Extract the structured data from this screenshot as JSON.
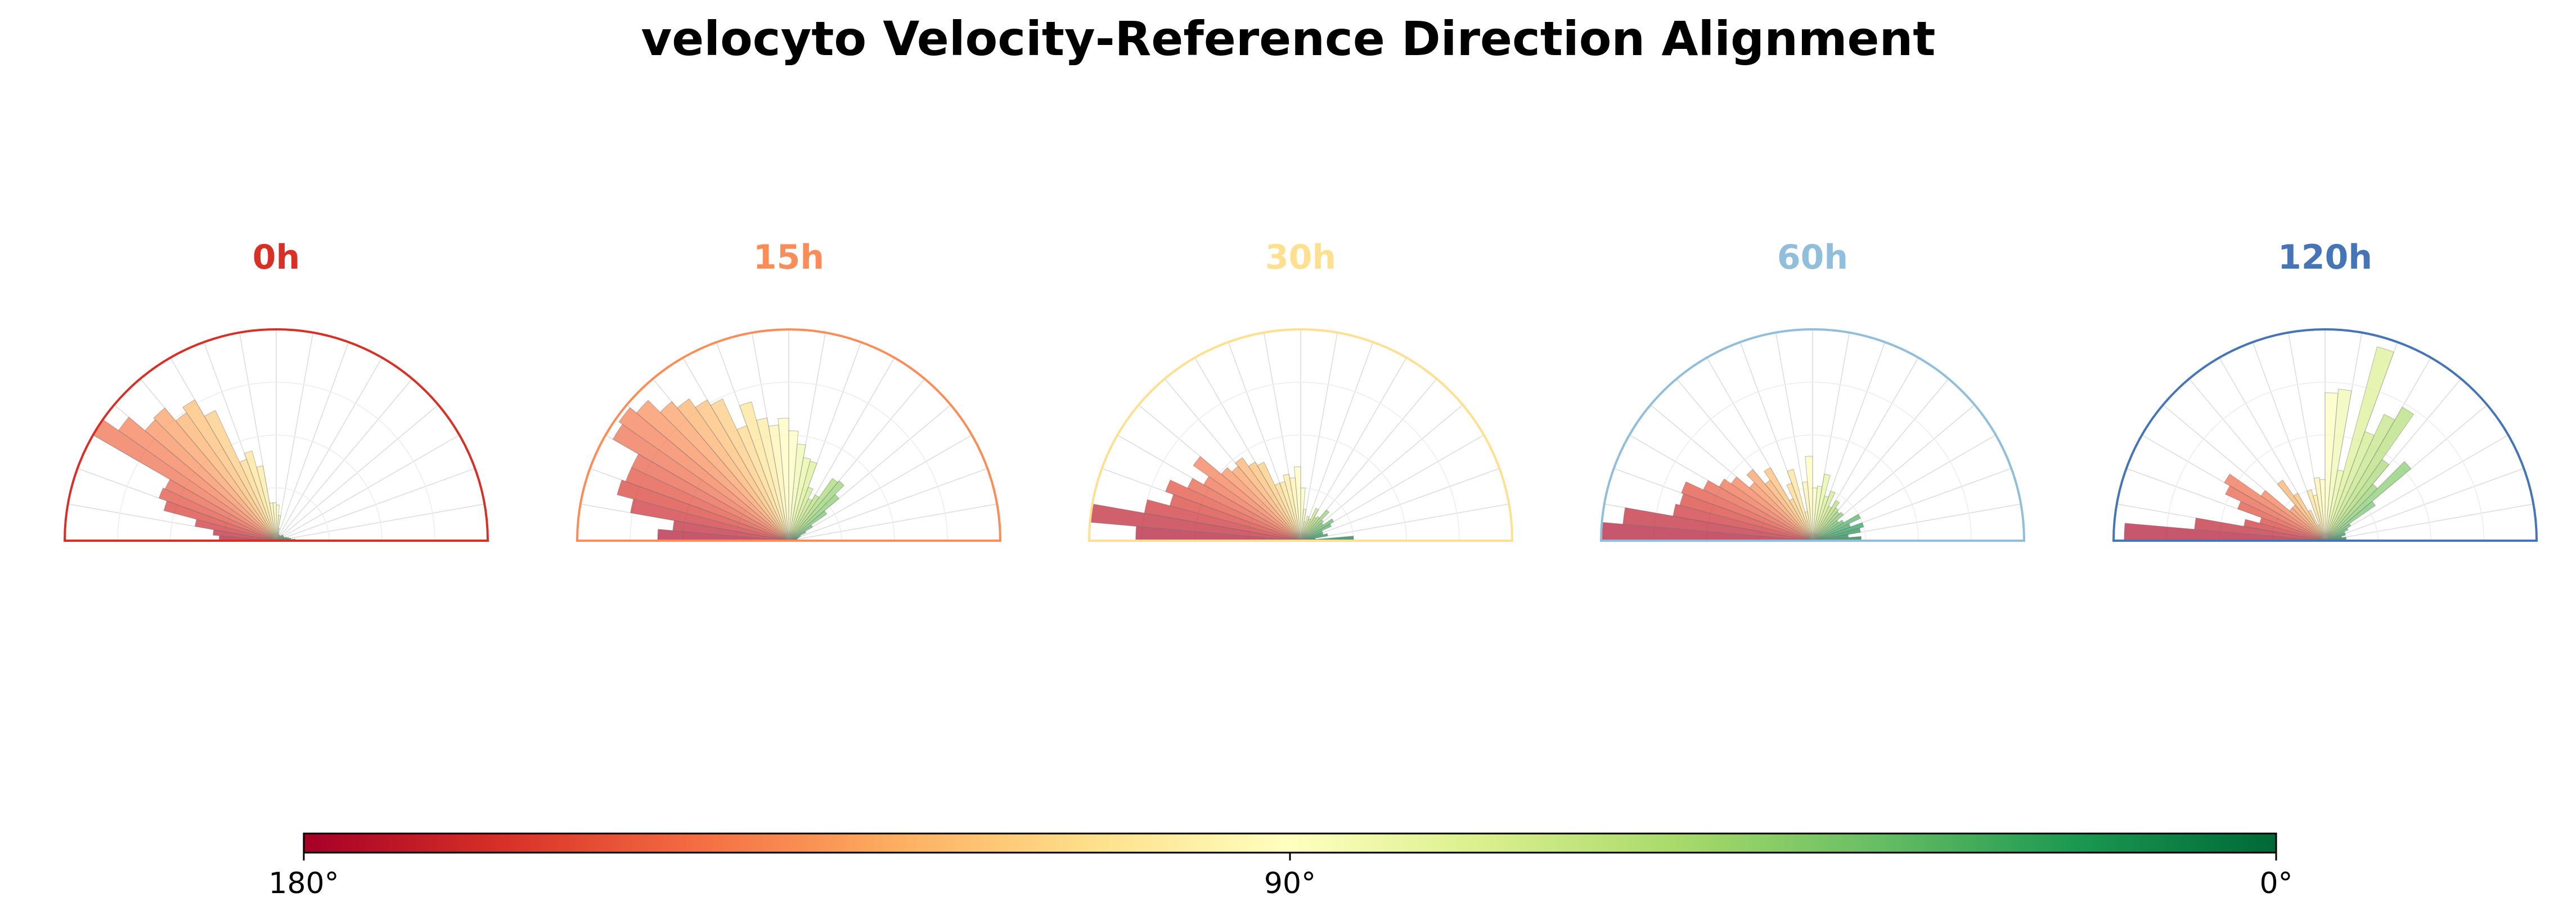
{
  "chart_data": {
    "type": "polar-histogram",
    "title": "velocyto Velocity-Reference Direction Alignment",
    "bins_deg": [
      2.5,
      7.5,
      12.5,
      17.5,
      22.5,
      27.5,
      32.5,
      37.5,
      42.5,
      47.5,
      52.5,
      57.5,
      62.5,
      67.5,
      72.5,
      77.5,
      82.5,
      87.5,
      92.5,
      97.5,
      102.5,
      107.5,
      112.5,
      117.5,
      122.5,
      127.5,
      132.5,
      137.5,
      142.5,
      147.5,
      152.5,
      157.5,
      162.5,
      167.5,
      172.5,
      177.5
    ],
    "rmax": 1.0,
    "panels": [
      {
        "label": "0h",
        "color": "#d73027",
        "values": [
          0.09,
          0.07,
          0.06,
          0.05,
          0.04,
          0.04,
          0.04,
          0.04,
          0.04,
          0.03,
          0.03,
          0.03,
          0.03,
          0.03,
          0.04,
          0.06,
          0.12,
          0.17,
          0.18,
          0.18,
          0.36,
          0.44,
          0.41,
          0.68,
          0.77,
          0.74,
          0.82,
          0.81,
          0.91,
          1.0,
          0.58,
          0.59,
          0.55,
          0.39,
          0.3,
          0.27
        ]
      },
      {
        "label": "15h",
        "color": "#fc8d59",
        "values": [
          0.05,
          0.04,
          0.04,
          0.05,
          0.06,
          0.09,
          0.13,
          0.22,
          0.31,
          0.37,
          0.36,
          0.25,
          0.22,
          0.27,
          0.39,
          0.4,
          0.46,
          0.52,
          0.58,
          0.55,
          0.59,
          0.68,
          0.58,
          0.74,
          0.77,
          0.82,
          0.86,
          0.94,
          0.98,
          0.96,
          0.82,
          0.82,
          0.84,
          0.76,
          0.55,
          0.62
        ]
      },
      {
        "label": "30h",
        "color": "#fee090",
        "values": [
          0.25,
          0.07,
          0.13,
          0.11,
          0.11,
          0.16,
          0.18,
          0.13,
          0.14,
          0.19,
          0.14,
          0.13,
          0.17,
          0.11,
          0.12,
          0.09,
          0.15,
          0.25,
          0.35,
          0.3,
          0.32,
          0.29,
          0.29,
          0.41,
          0.43,
          0.48,
          0.46,
          0.49,
          0.62,
          0.53,
          0.59,
          0.68,
          0.64,
          0.75,
          1.0,
          0.78
        ]
      },
      {
        "label": "60h",
        "color": "#91bfdb",
        "values": [
          0.23,
          0.17,
          0.23,
          0.25,
          0.19,
          0.25,
          0.17,
          0.15,
          0.19,
          0.18,
          0.19,
          0.22,
          0.18,
          0.25,
          0.22,
          0.32,
          0.26,
          0.25,
          0.4,
          0.28,
          0.14,
          0.35,
          0.29,
          0.22,
          0.4,
          0.35,
          0.44,
          0.39,
          0.47,
          0.51,
          0.57,
          0.66,
          0.65,
          0.67,
          0.9,
          1.0
        ]
      },
      {
        "label": "120h",
        "color": "#4575b4",
        "values": [
          0.1,
          0.1,
          0.08,
          0.1,
          0.1,
          0.12,
          0.14,
          0.29,
          0.53,
          0.35,
          0.47,
          0.73,
          0.66,
          0.55,
          0.95,
          0.34,
          0.72,
          0.7,
          0.29,
          0.3,
          0.22,
          0.25,
          0.08,
          0.16,
          0.26,
          0.35,
          0.22,
          0.22,
          0.37,
          0.55,
          0.52,
          0.44,
          0.32,
          0.39,
          0.62,
          0.95
        ]
      }
    ],
    "colorbar": {
      "colormap": "RdYlGn",
      "range": [
        180,
        0
      ],
      "ticks": [
        180,
        90,
        0
      ],
      "tick_labels": [
        "180°",
        "90°",
        "0°"
      ],
      "stops": [
        "#a50026",
        "#d73027",
        "#f46d43",
        "#fdae61",
        "#fee08b",
        "#ffffbf",
        "#d9ef8b",
        "#a6d96a",
        "#66bd63",
        "#1a9850",
        "#006837"
      ]
    }
  }
}
